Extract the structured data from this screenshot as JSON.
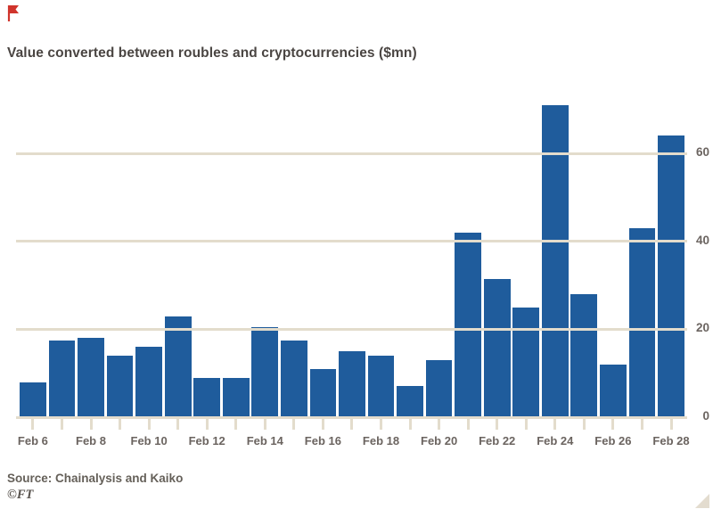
{
  "header": {
    "title": "Value converted between roubles and cryptocurrencies ($mn)"
  },
  "chart_data": {
    "type": "bar",
    "title": "Value converted between roubles and cryptocurrencies ($mn)",
    "x_tick_labels": [
      "Feb 6",
      "Feb 8",
      "Feb 10",
      "Feb 12",
      "Feb 14",
      "Feb 16",
      "Feb 18",
      "Feb 20",
      "Feb 22",
      "Feb 24",
      "Feb 26",
      "Feb 28"
    ],
    "x_label_every_n_bars": 2,
    "values": [
      8,
      17.5,
      18,
      14,
      16,
      23,
      9,
      9,
      20.5,
      17.5,
      11,
      15,
      14,
      7,
      13,
      42,
      31.5,
      25,
      71,
      28,
      12,
      43,
      64
    ],
    "y_ticks": [
      0,
      20,
      40,
      60
    ],
    "ylim": [
      0,
      75
    ],
    "ylabel": "",
    "xlabel": "",
    "legend": "none",
    "grid": "horizontal cream lines drawn over bars, y-axis labels on right"
  },
  "footer": {
    "source": "Source: Chainalysis and Kaiko",
    "credit": "©FT"
  },
  "colors": {
    "bar": "#1f5c9c",
    "grid": "#e3dccc",
    "title_text": "#4a4542",
    "axis_text": "#6b6460",
    "background": "#ffffff",
    "flag_red": "#d0342c"
  },
  "icons": {
    "top_left": "red-flag-icon",
    "bottom_right": "resize-handle-icon"
  }
}
